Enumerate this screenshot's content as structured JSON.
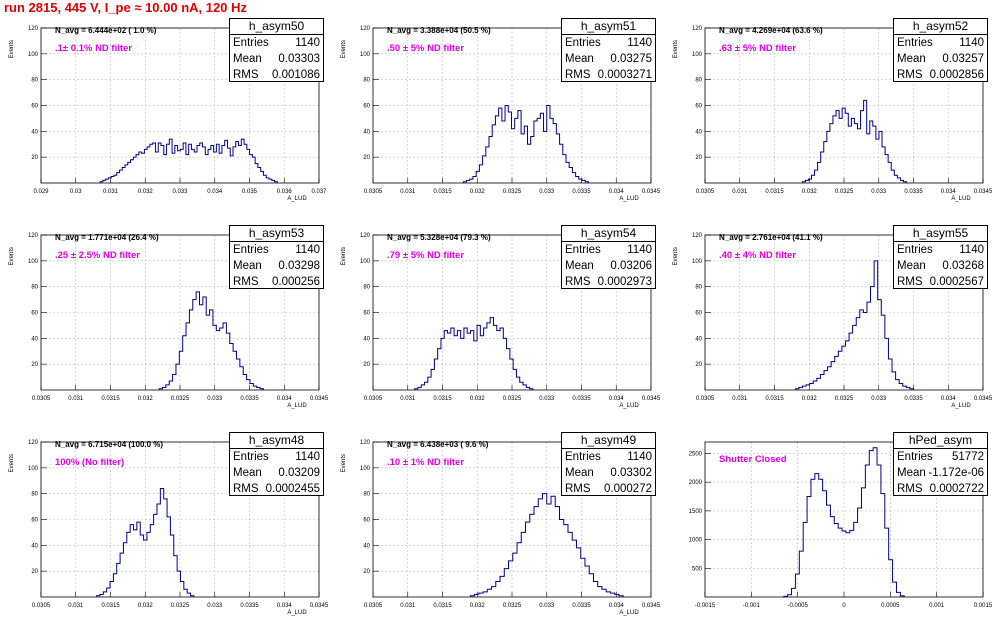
{
  "title": "run 2815,   445 V, I_pe ≈ 10.00 nA, 120 Hz",
  "chart_data": [
    {
      "type": "histogram",
      "name": "h_asym50",
      "n_avg": "N_avg = 6.444e+02 ( 1.0 %)",
      "filter": ".1± 0.1% ND filter",
      "stats": [
        {
          "label": "Entries",
          "value": "1140"
        },
        {
          "label": "Mean",
          "value": "0.03303"
        },
        {
          "label": "RMS",
          "value": "0.001086"
        }
      ],
      "ylabel": "Events",
      "xlabel": "A_LUD",
      "xticks": [
        "0.029",
        "0.03",
        "0.031",
        "0.032",
        "0.033",
        "0.034",
        "0.035",
        "0.036",
        "0.037"
      ],
      "yticks": [
        "20",
        "40",
        "60",
        "80",
        "100",
        "120"
      ],
      "xlim": [
        0.029,
        0.037
      ],
      "ylim": [
        0,
        120
      ],
      "bin_range": [
        0.0307,
        0.0358
      ],
      "counts": [
        1,
        2,
        3,
        4,
        5,
        6,
        8,
        10,
        12,
        14,
        16,
        18,
        20,
        22,
        24,
        23,
        26,
        28,
        30,
        31,
        24,
        31,
        29,
        22,
        30,
        34,
        23,
        29,
        25,
        26,
        31,
        22,
        30,
        26,
        24,
        29,
        31,
        28,
        22,
        26,
        29,
        24,
        30,
        23,
        29,
        33,
        27,
        21,
        28,
        32,
        29,
        34,
        30,
        26,
        22,
        20,
        15,
        12,
        9,
        6,
        4,
        3,
        2,
        1
      ]
    },
    {
      "type": "histogram",
      "name": "h_asym51",
      "n_avg": "N_avg = 3.388e+04 (50.5 %)",
      "filter": ".50 ± 5% ND filter",
      "stats": [
        {
          "label": "Entries",
          "value": "1140"
        },
        {
          "label": "Mean",
          "value": "0.03275"
        },
        {
          "label": "RMS",
          "value": "0.0003271"
        }
      ],
      "ylabel": "Events",
      "xlabel": "A_LUD",
      "xticks": [
        "0.0305",
        "0.031",
        "0.0315",
        "0.032",
        "0.0325",
        "0.033",
        "0.0335",
        "0.034",
        "0.0345"
      ],
      "yticks": [
        "20",
        "40",
        "60",
        "80",
        "100",
        "120"
      ],
      "xlim": [
        0.0305,
        0.0345
      ],
      "ylim": [
        0,
        120
      ],
      "bin_range": [
        0.0318,
        0.0336
      ],
      "counts": [
        1,
        2,
        3,
        5,
        9,
        14,
        21,
        28,
        36,
        45,
        52,
        58,
        48,
        60,
        55,
        42,
        50,
        56,
        38,
        44,
        30,
        36,
        48,
        50,
        54,
        40,
        60,
        50,
        46,
        38,
        30,
        22,
        16,
        12,
        8,
        5,
        3,
        2,
        1
      ]
    },
    {
      "type": "histogram",
      "name": "h_asym52",
      "n_avg": "N_avg = 4.269e+04 (63.6 %)",
      "filter": ".63 ± 5% ND filter",
      "stats": [
        {
          "label": "Entries",
          "value": "1140"
        },
        {
          "label": "Mean",
          "value": "0.03257"
        },
        {
          "label": "RMS",
          "value": "0.0002856"
        }
      ],
      "ylabel": "Events",
      "xlabel": "A_LUD",
      "xticks": [
        "0.0305",
        "0.031",
        "0.0315",
        "0.032",
        "0.0325",
        "0.033",
        "0.0335",
        "0.034",
        "0.0345"
      ],
      "yticks": [
        "20",
        "40",
        "60",
        "80",
        "100",
        "120"
      ],
      "xlim": [
        0.0305,
        0.0345
      ],
      "ylim": [
        0,
        120
      ],
      "bin_range": [
        0.0319,
        0.0334
      ],
      "counts": [
        1,
        2,
        3,
        6,
        10,
        16,
        24,
        32,
        40,
        46,
        52,
        56,
        50,
        58,
        54,
        44,
        50,
        46,
        42,
        56,
        64,
        38,
        48,
        44,
        34,
        40,
        28,
        22,
        16,
        10,
        6,
        4,
        2,
        1
      ]
    },
    {
      "type": "histogram",
      "name": "h_asym53",
      "n_avg": "N_avg = 1.771e+04 (26.4 %)",
      "filter": ".25 ± 2.5% ND filter",
      "stats": [
        {
          "label": "Entries",
          "value": "1140"
        },
        {
          "label": "Mean",
          "value": "0.03298"
        },
        {
          "label": "RMS",
          "value": "0.000256"
        }
      ],
      "ylabel": "Events",
      "xlabel": "A_LUD",
      "xticks": [
        "0.0305",
        "0.031",
        "0.0315",
        "0.032",
        "0.0325",
        "0.033",
        "0.0335",
        "0.034",
        "0.0345"
      ],
      "yticks": [
        "20",
        "40",
        "60",
        "80",
        "100",
        "120"
      ],
      "xlim": [
        0.0305,
        0.0345
      ],
      "ylim": [
        0,
        120
      ],
      "bin_range": [
        0.0322,
        0.0337
      ],
      "counts": [
        1,
        2,
        4,
        7,
        12,
        20,
        30,
        42,
        52,
        62,
        70,
        76,
        66,
        72,
        58,
        62,
        50,
        46,
        48,
        52,
        44,
        36,
        30,
        24,
        18,
        12,
        8,
        5,
        3,
        2,
        1
      ]
    },
    {
      "type": "histogram",
      "name": "h_asym54",
      "n_avg": "N_avg = 5.328e+04 (79.3 %)",
      "filter": ".79 ± 5% ND filter",
      "stats": [
        {
          "label": "Entries",
          "value": "1140"
        },
        {
          "label": "Mean",
          "value": "0.03206"
        },
        {
          "label": "RMS",
          "value": "0.0002973"
        }
      ],
      "ylabel": "Events",
      "xlabel": "A_LUD",
      "xticks": [
        "0.0305",
        "0.031",
        "0.0315",
        "0.032",
        "0.0325",
        "0.033",
        "0.0335",
        "0.034",
        "0.0345"
      ],
      "yticks": [
        "20",
        "40",
        "60",
        "80",
        "100",
        "120"
      ],
      "xlim": [
        0.0305,
        0.0345
      ],
      "ylim": [
        0,
        120
      ],
      "bin_range": [
        0.0311,
        0.0328
      ],
      "counts": [
        1,
        2,
        4,
        6,
        10,
        16,
        24,
        32,
        40,
        46,
        44,
        48,
        42,
        46,
        40,
        48,
        44,
        46,
        38,
        50,
        42,
        48,
        52,
        56,
        50,
        46,
        48,
        40,
        32,
        24,
        16,
        10,
        6,
        4,
        2,
        1
      ]
    },
    {
      "type": "histogram",
      "name": "h_asym55",
      "n_avg": "N_avg = 2.761e+04 (41.1 %)",
      "filter": ".40 ± 4% ND filter",
      "stats": [
        {
          "label": "Entries",
          "value": "1140"
        },
        {
          "label": "Mean",
          "value": "0.03268"
        },
        {
          "label": "RMS",
          "value": "0.0002567"
        }
      ],
      "ylabel": "Events",
      "xlabel": "A_LUD",
      "xticks": [
        "0.0305",
        "0.031",
        "0.0315",
        "0.032",
        "0.0325",
        "0.033",
        "0.0335",
        "0.034",
        "0.0345"
      ],
      "yticks": [
        "20",
        "40",
        "60",
        "80",
        "100",
        "120"
      ],
      "xlim": [
        0.0305,
        0.0345
      ],
      "ylim": [
        0,
        120
      ],
      "bin_range": [
        0.0318,
        0.0335
      ],
      "counts": [
        1,
        2,
        3,
        4,
        5,
        7,
        9,
        12,
        15,
        18,
        22,
        26,
        30,
        34,
        38,
        44,
        50,
        56,
        62,
        60,
        68,
        80,
        100,
        70,
        58,
        40,
        24,
        14,
        8,
        5,
        3,
        2,
        1
      ]
    },
    {
      "type": "histogram",
      "name": "h_asym48",
      "n_avg": "N_avg = 6.715e+04 (100.0 %)",
      "filter": "100% (No filter)",
      "stats": [
        {
          "label": "Entries",
          "value": "1140"
        },
        {
          "label": "Mean",
          "value": "0.03209"
        },
        {
          "label": "RMS",
          "value": "0.0002455"
        }
      ],
      "ylabel": "Events",
      "xlabel": "A_LUD",
      "xticks": [
        "0.0305",
        "0.031",
        "0.0315",
        "0.032",
        "0.0325",
        "0.033",
        "0.0335",
        "0.034",
        "0.0345"
      ],
      "yticks": [
        "20",
        "40",
        "60",
        "80",
        "100",
        "120"
      ],
      "xlim": [
        0.0305,
        0.0345
      ],
      "ylim": [
        0,
        120
      ],
      "bin_range": [
        0.0313,
        0.0327
      ],
      "counts": [
        1,
        2,
        4,
        7,
        12,
        18,
        26,
        34,
        42,
        50,
        56,
        52,
        58,
        48,
        44,
        50,
        56,
        64,
        72,
        84,
        76,
        62,
        48,
        32,
        20,
        12,
        6,
        3,
        1
      ]
    },
    {
      "type": "histogram",
      "name": "h_asym49",
      "n_avg": "N_avg = 6.438e+03 ( 9.6 %)",
      "filter": ".10 ± 1% ND filter",
      "stats": [
        {
          "label": "Entries",
          "value": "1140"
        },
        {
          "label": "Mean",
          "value": "0.03302"
        },
        {
          "label": "RMS",
          "value": "0.000272"
        }
      ],
      "ylabel": "Events",
      "xlabel": "A_LUD",
      "xticks": [
        "0.0305",
        "0.031",
        "0.0315",
        "0.032",
        "0.0325",
        "0.033",
        "0.0335",
        "0.034",
        "0.0345"
      ],
      "yticks": [
        "20",
        "40",
        "60",
        "80",
        "100",
        "120"
      ],
      "xlim": [
        0.0305,
        0.0345
      ],
      "ylim": [
        0,
        120
      ],
      "bin_range": [
        0.0319,
        0.0341
      ],
      "counts": [
        1,
        2,
        3,
        4,
        6,
        8,
        12,
        16,
        22,
        28,
        34,
        42,
        50,
        58,
        64,
        70,
        76,
        80,
        72,
        78,
        70,
        60,
        56,
        50,
        44,
        38,
        30,
        24,
        18,
        12,
        8,
        6,
        4,
        3,
        2,
        1
      ]
    },
    {
      "type": "histogram",
      "name": "hPed_asym",
      "n_avg": "",
      "filter": "Shutter Closed",
      "stats": [
        {
          "label": "Entries",
          "value": "51772"
        },
        {
          "label": "Mean",
          "value": "-1.172e-06"
        },
        {
          "label": "RMS",
          "value": "0.0002722"
        }
      ],
      "ylabel": "",
      "xlabel": "",
      "xticks": [
        "-0.0015",
        "-0.001",
        "-0.0005",
        "0",
        "0.0005",
        "0.001",
        "0.0015"
      ],
      "yticks": [
        "500",
        "1000",
        "1500",
        "2000",
        "2500"
      ],
      "xlim": [
        -0.0015,
        0.0015
      ],
      "ylim": [
        0,
        2700
      ],
      "bin_range": [
        -0.00065,
        0.00065
      ],
      "counts": [
        10,
        40,
        150,
        400,
        800,
        1300,
        1750,
        2050,
        2150,
        2050,
        1850,
        1600,
        1400,
        1280,
        1200,
        1150,
        1120,
        1160,
        1300,
        1550,
        1900,
        2300,
        2550,
        2600,
        2300,
        1800,
        1200,
        650,
        260,
        80,
        20
      ]
    }
  ]
}
